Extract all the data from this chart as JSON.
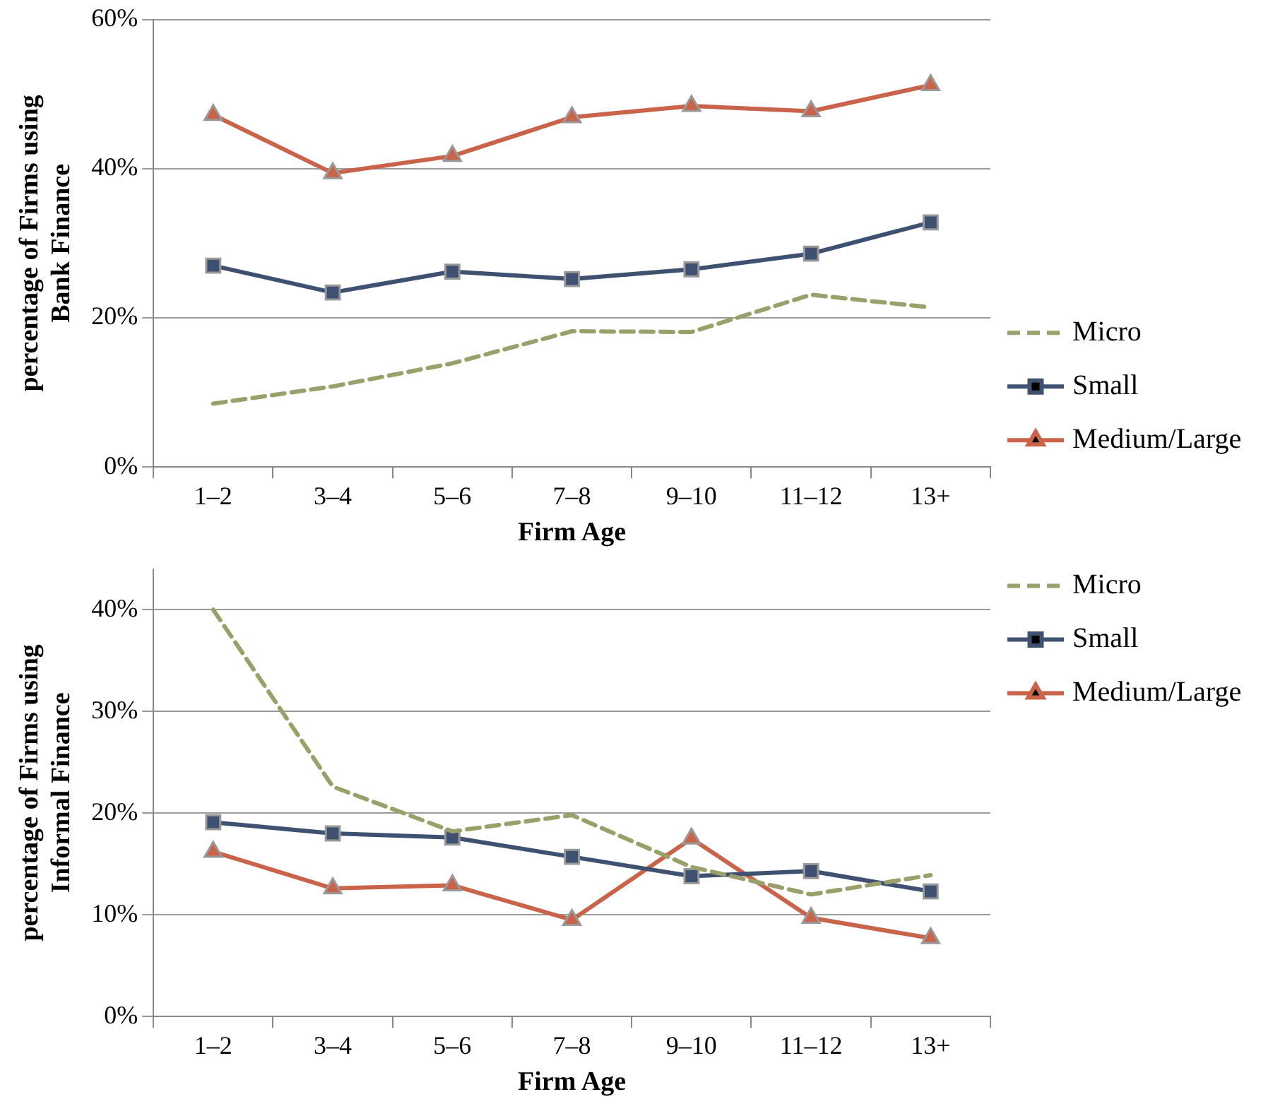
{
  "chart_data": [
    {
      "type": "line",
      "ylabel": "percentage of Firms using\nBank Finance",
      "xlabel": "Firm Age",
      "categories": [
        "1–2",
        "3–4",
        "5–6",
        "7–8",
        "9–10",
        "11–12",
        "13+"
      ],
      "ylim": [
        0,
        60
      ],
      "yticks": [
        {
          "value": 0,
          "label": "0%"
        },
        {
          "value": 20,
          "label": "20%"
        },
        {
          "value": 40,
          "label": "40%"
        },
        {
          "value": 60,
          "label": "60%"
        }
      ],
      "grid": "y",
      "legend": "bottom right",
      "series": [
        {
          "name": "Micro",
          "color": "#9aa06a",
          "marker": "none",
          "line_style": "dashed",
          "values": [
            8.5,
            10.8,
            13.9,
            18.2,
            18.1,
            23.1,
            21.4
          ]
        },
        {
          "name": "Small",
          "color": "#3f5170",
          "marker": "square",
          "line_style": "solid",
          "values": [
            27.0,
            23.4,
            26.2,
            25.2,
            26.5,
            28.6,
            32.8
          ]
        },
        {
          "name": "Medium/Large",
          "color": "#c9634a",
          "marker": "triangle",
          "line_style": "solid",
          "values": [
            47.2,
            39.4,
            41.7,
            46.9,
            48.4,
            47.7,
            51.2
          ]
        }
      ]
    },
    {
      "type": "line",
      "ylabel": "percentage of Firms using\nInformal Finance",
      "xlabel": "Firm Age",
      "categories": [
        "1–2",
        "3–4",
        "5–6",
        "7–8",
        "9–10",
        "11–12",
        "13+"
      ],
      "ylim": [
        0,
        44
      ],
      "yticks": [
        {
          "value": 0,
          "label": "0%"
        },
        {
          "value": 10,
          "label": "10%"
        },
        {
          "value": 20,
          "label": "20%"
        },
        {
          "value": 30,
          "label": "30%"
        },
        {
          "value": 40,
          "label": "40%"
        }
      ],
      "grid": "y",
      "legend": "top right",
      "series": [
        {
          "name": "Micro",
          "color": "#9aa06a",
          "marker": "none",
          "line_style": "dashed",
          "values": [
            40.0,
            22.6,
            18.2,
            19.8,
            14.7,
            12.0,
            13.9
          ]
        },
        {
          "name": "Small",
          "color": "#3f5170",
          "marker": "square",
          "line_style": "solid",
          "values": [
            19.1,
            18.0,
            17.6,
            15.7,
            13.8,
            14.3,
            12.3
          ]
        },
        {
          "name": "Medium/Large",
          "color": "#c9634a",
          "marker": "triangle",
          "line_style": "solid",
          "values": [
            16.2,
            12.6,
            12.9,
            9.5,
            17.5,
            9.7,
            7.7
          ]
        }
      ]
    }
  ]
}
